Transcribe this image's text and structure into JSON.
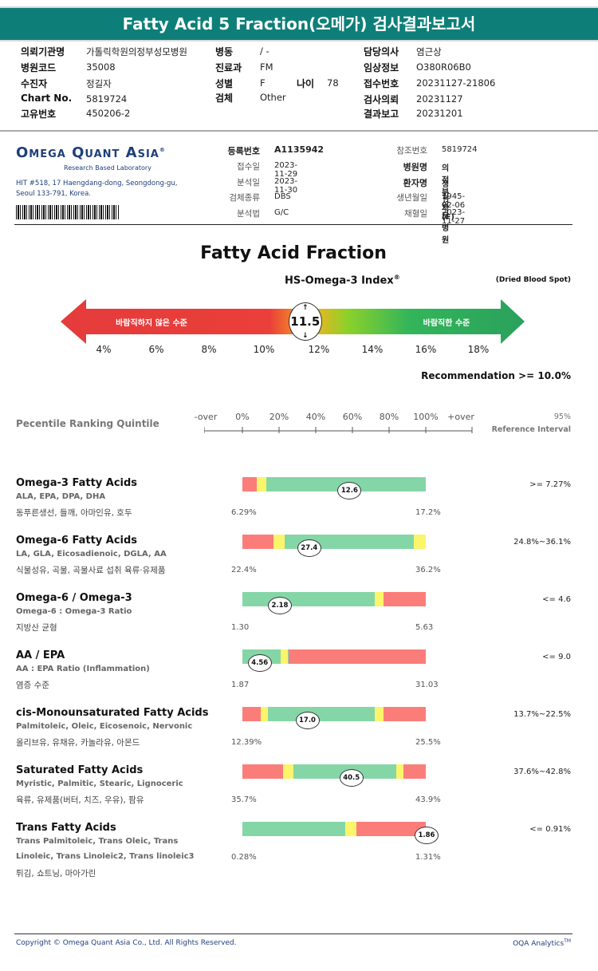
{
  "header": {
    "title": "Fatty Acid 5 Fraction(오메가) 검사결과보고서",
    "left": [
      {
        "label": "의뢰기관명",
        "value": "가톨릭학원의정부성모병원"
      },
      {
        "label": "병원코드",
        "value": "35008"
      },
      {
        "label": "수진자",
        "value": "정길자"
      },
      {
        "label": "Chart No.",
        "value": "5819724"
      },
      {
        "label": "고유번호",
        "value": "450206-2"
      }
    ],
    "mid": [
      {
        "label": "병동",
        "value": "/ -"
      },
      {
        "label": "진료과",
        "value": "FM"
      },
      {
        "label": "성별",
        "value": "F"
      },
      {
        "label": "검체",
        "value": "Other"
      }
    ],
    "age_label": "나이",
    "age_value": "78",
    "right": [
      {
        "label": "담당의사",
        "value": "염근상"
      },
      {
        "label": "임상정보",
        "value": "O380R06B0"
      },
      {
        "label": "접수번호",
        "value": "20231127-21806"
      },
      {
        "label": "검사의뢰",
        "value": "20231127"
      },
      {
        "label": "결과보고",
        "value": "20231201"
      }
    ]
  },
  "lab": {
    "logo": "Omega Quant Asia",
    "logo_reg": "®",
    "tagline": "Research Based Laboratory",
    "address1": "HIT #518, 17 Haengdang-dong, Seongdong-gu,",
    "address2": "Seoul 133-791, Korea."
  },
  "reg": {
    "left": [
      {
        "label": "등록번호",
        "value": "A1135942",
        "bold": true
      },
      {
        "label": "접수일",
        "value": "2023-11-29"
      },
      {
        "label": "분석일",
        "value": "2023-11-30"
      },
      {
        "label": "검체종류",
        "value": "DBS"
      },
      {
        "label": "분석법",
        "value": "G/C"
      }
    ],
    "right": [
      {
        "label": "참조번호",
        "value": "5819724"
      },
      {
        "label": "병원명",
        "value": "의정부성모병원",
        "bold": true
      },
      {
        "label": "환자명",
        "value": "정길자 (F)",
        "bold": true
      },
      {
        "label": "생년월일",
        "value": "1945-02-06"
      },
      {
        "label": "채혈일",
        "value": "2023-11-27"
      }
    ]
  },
  "main_title": "Fatty Acid Fraction",
  "index": {
    "title": "HS-Omega-3 Index",
    "title_sup": "®",
    "sample_note": "(Dried Blood Spot)",
    "value": "11.5",
    "value_num": 11.5,
    "low_label": "바람직하지 않은 수준",
    "high_label": "바람직한 수준",
    "scale": [
      "4%",
      "6%",
      "8%",
      "10%",
      "12%",
      "14%",
      "16%",
      "18%"
    ],
    "recommendation": "Recommendation  >= 10.0%"
  },
  "percentile": {
    "label": "Pecentile Ranking Quintile",
    "ticks": [
      "-over",
      "0%",
      "20%",
      "40%",
      "60%",
      "80%",
      "100%",
      "+over"
    ],
    "ref_label1": "95%",
    "ref_label2": "Reference Interval"
  },
  "rows": [
    {
      "title": "Omega-3 Fatty Acids",
      "sub": "ALA, EPA, DPA, DHA",
      "food": "동푸른생선, 들깨, 아마인유, 호두",
      "lo": "6.29%",
      "hi": "17.2%",
      "value": "12.6",
      "pos": 0.58,
      "ref": ">= 7.27%",
      "segments": [
        {
          "c": "red",
          "a": 0,
          "b": 0.08
        },
        {
          "c": "yel",
          "a": 0.08,
          "b": 0.13
        }
      ]
    },
    {
      "title": "Omega-6 Fatty Acids",
      "sub": "LA, GLA, Eicosadienoic, DGLA, AA",
      "food": "식물성유, 곡물, 곡물사료 섭취 육류·유제품",
      "lo": "22.4%",
      "hi": "36.2%",
      "value": "27.4",
      "pos": 0.36,
      "ref": "24.8%~36.1%",
      "segments": [
        {
          "c": "red",
          "a": 0,
          "b": 0.17
        },
        {
          "c": "yel",
          "a": 0.17,
          "b": 0.23
        },
        {
          "c": "yel",
          "a": 0.935,
          "b": 1.0
        }
      ]
    },
    {
      "title": "Omega-6 / Omega-3",
      "sub": "Omega-6 : Omega-3 Ratio",
      "food": "지방산 균형",
      "lo": "1.30",
      "hi": "5.63",
      "value": "2.18",
      "pos": 0.2,
      "ref": "<= 4.6",
      "segments": [
        {
          "c": "yel",
          "a": 0.72,
          "b": 0.77
        },
        {
          "c": "red",
          "a": 0.77,
          "b": 1.0
        }
      ]
    },
    {
      "title": "AA / EPA",
      "sub": "AA : EPA Ratio (Inflammation)",
      "food": "염증 수준",
      "lo": "1.87",
      "hi": "31.03",
      "value": "4.56",
      "pos": 0.09,
      "ref": "<= 9.0",
      "segments": [
        {
          "c": "yel",
          "a": 0.21,
          "b": 0.25
        },
        {
          "c": "red",
          "a": 0.25,
          "b": 1.0
        }
      ]
    },
    {
      "title": "cis-Monounsaturated Fatty Acids",
      "sub": "Palmitoleic, Oleic, Eicosenoic, Nervonic",
      "food": "올리브유, 유채유, 카놀라유, 아몬드",
      "lo": "12.39%",
      "hi": "25.5%",
      "value": "17.0",
      "pos": 0.35,
      "ref": "13.7%~22.5%",
      "segments": [
        {
          "c": "red",
          "a": 0,
          "b": 0.1
        },
        {
          "c": "yel",
          "a": 0.1,
          "b": 0.14
        },
        {
          "c": "yel",
          "a": 0.72,
          "b": 0.77
        },
        {
          "c": "red",
          "a": 0.77,
          "b": 1.0
        }
      ]
    },
    {
      "title": "Saturated Fatty Acids",
      "sub": "Myristic, Palmitic, Stearic, Lignoceric",
      "food": "육류, 유제품(버터, 치즈, 우유), 팜유",
      "lo": "35.7%",
      "hi": "43.9%",
      "value": "40.5",
      "pos": 0.59,
      "ref": "37.6%~42.8%",
      "segments": [
        {
          "c": "red",
          "a": 0,
          "b": 0.22
        },
        {
          "c": "yel",
          "a": 0.22,
          "b": 0.28
        },
        {
          "c": "yel",
          "a": 0.84,
          "b": 0.88
        },
        {
          "c": "red",
          "a": 0.88,
          "b": 1.0
        }
      ]
    },
    {
      "title": "Trans Fatty Acids",
      "sub": "Trans Palmitoleic, Trans Oleic, Trans",
      "sub2": "Linoleic, Trans Linoleic2, Trans linoleic3",
      "food": "튀김, 쇼트닝, 마아가린",
      "lo": "0.28%",
      "hi": "1.31%",
      "value": "1.86",
      "pos": 1.0,
      "ref": "<= 0.91%",
      "segments": [
        {
          "c": "yel",
          "a": 0.56,
          "b": 0.62
        },
        {
          "c": "red",
          "a": 0.62,
          "b": 1.0
        }
      ]
    }
  ],
  "footer": {
    "copyright": "Copyright © Omega Quant Asia Co., Ltd.  All Rights Reserved.",
    "brand": "OQA Analytics",
    "brand_tm": "TM"
  }
}
